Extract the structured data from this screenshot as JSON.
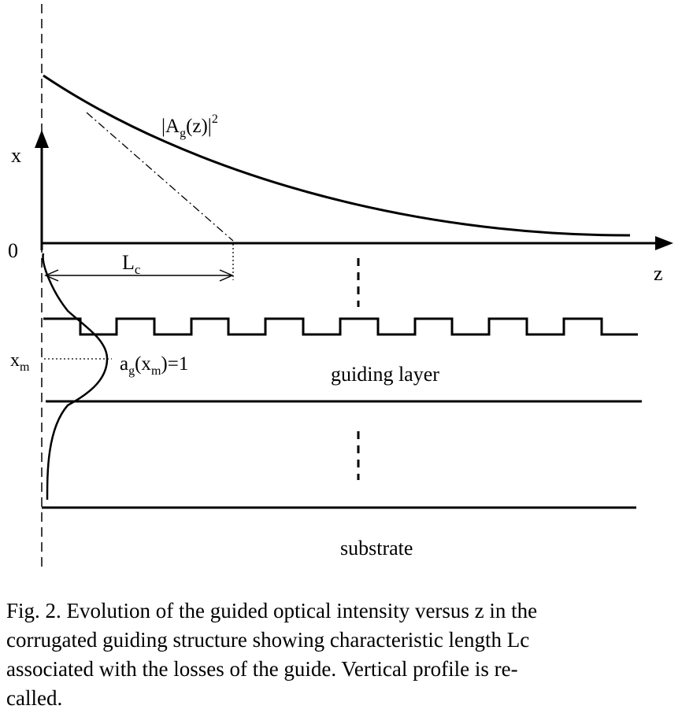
{
  "labels": {
    "x_axis": "x",
    "origin": "0",
    "z_axis": "z",
    "intensity_base": "|A",
    "intensity_sub": "g",
    "intensity_tail": "(z)|",
    "intensity_sup": "2",
    "lc_main": "L",
    "lc_sub": "c",
    "xm_main": "x",
    "xm_sub": "m",
    "profile_a": "a",
    "profile_a_sub": "g",
    "profile_mid": "(x",
    "profile_mid_sub": "m",
    "profile_end": ")=1",
    "guiding_layer": "guiding layer",
    "substrate": "substrate"
  },
  "caption": {
    "line1": "Fig. 2. Evolution of the guided optical intensity versus z in the",
    "line2": "corrugated guiding structure showing characteristic length Lc",
    "line3": "associated with the losses of the guide. Vertical profile is re-",
    "line4": "called."
  }
}
